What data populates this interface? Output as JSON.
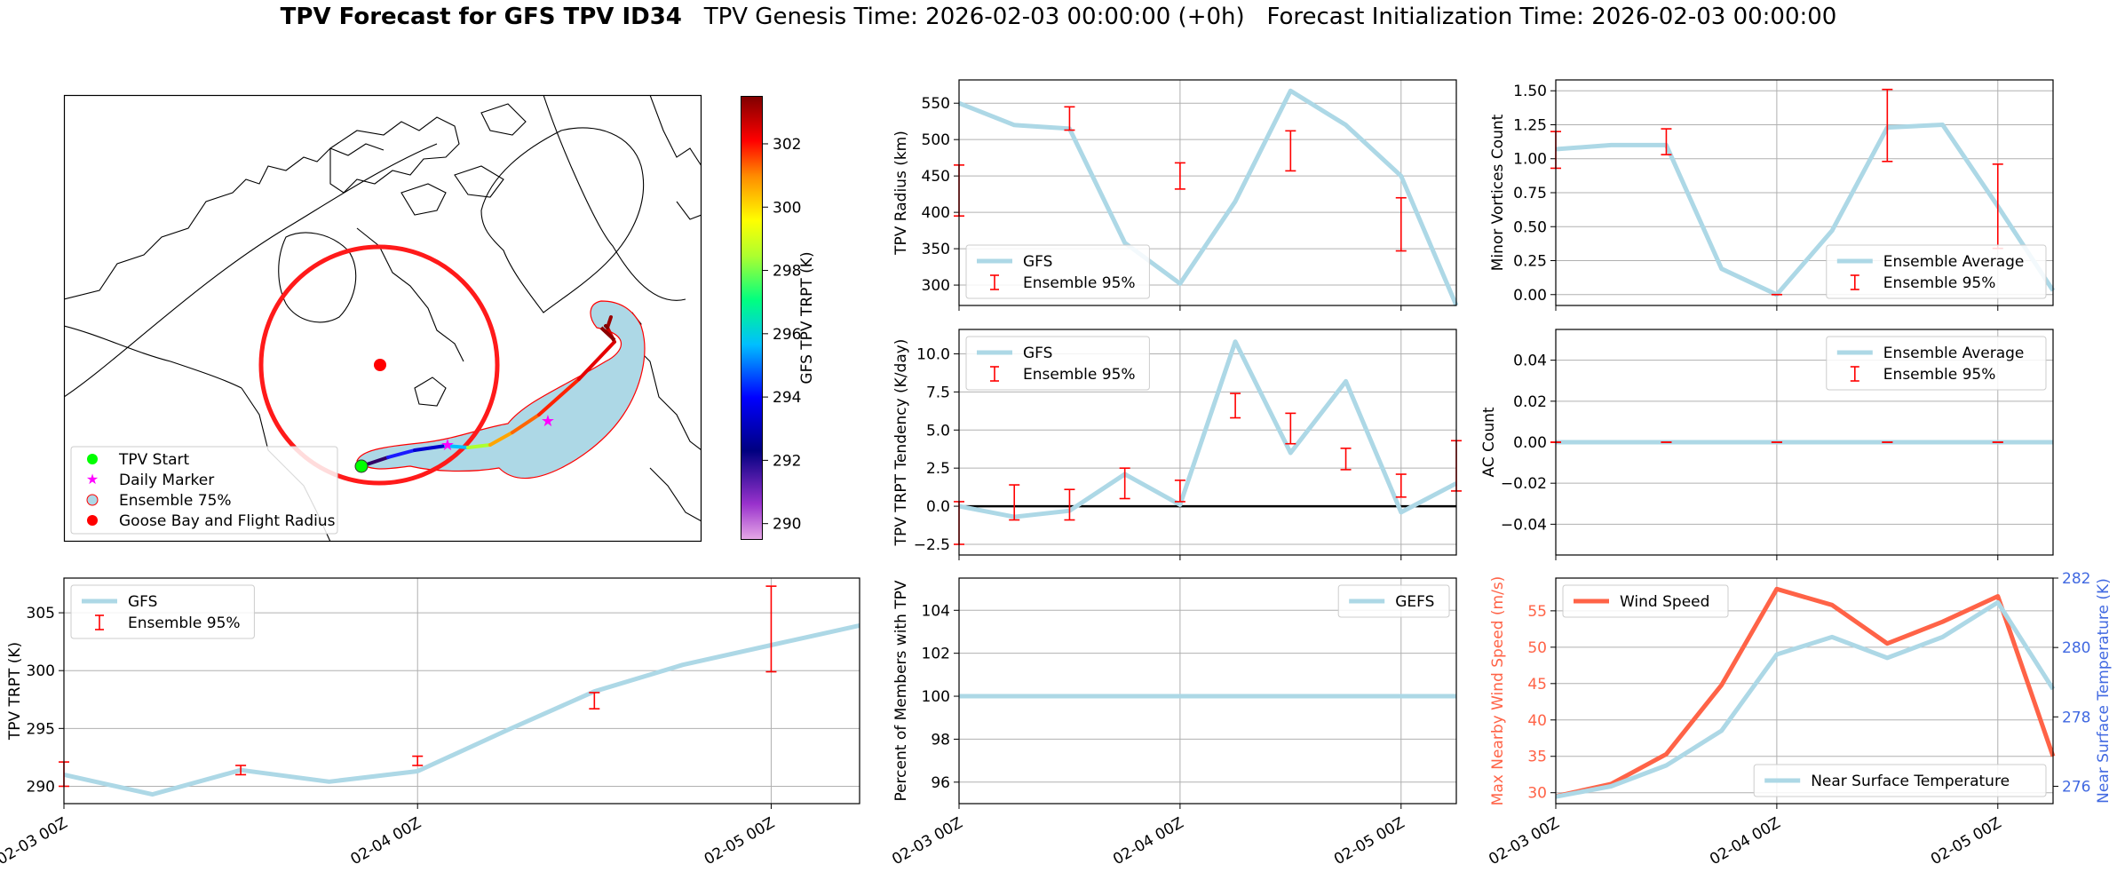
{
  "title": {
    "bold": "TPV Forecast for GFS TPV ID34",
    "genesis": "TPV Genesis Time: 2026-02-03 00:00:00 (+0h)",
    "init": "Forecast Initialization Time: 2026-02-03 00:00:00"
  },
  "colors": {
    "gfs_line": "#add8e6",
    "errbar": "#ff0000",
    "wind": "#ff6347",
    "temp_axis": "#4169e1",
    "zero_line": "#000000",
    "grid": "#b0b0b0",
    "tpv_start": "#00ff00",
    "daily_marker": "#ff00ff",
    "goose_bay": "#ff0000"
  },
  "map": {
    "colorbar_label": "GFS TPV TRPT (K)",
    "colorbar_ticks": [
      "290",
      "292",
      "294",
      "296",
      "298",
      "300",
      "302"
    ],
    "colorbar_range": [
      289.5,
      303.5
    ],
    "legend": [
      "TPV Start",
      "Daily Marker",
      "Ensemble 75%",
      "Goose Bay and Flight Radius"
    ]
  },
  "chart_data": [
    {
      "id": "radius",
      "type": "line",
      "ylabel": "TPV Radius (km)",
      "xlim": [
        0,
        54
      ],
      "ylim": [
        272,
        582
      ],
      "yticks": [
        300,
        350,
        400,
        450,
        500,
        550
      ],
      "ytick_labels": [
        "300",
        "350",
        "400",
        "450",
        "500",
        "550"
      ],
      "xticks": [
        0,
        24,
        48
      ],
      "series": [
        {
          "name": "GFS",
          "x": [
            0,
            6,
            12,
            18,
            24,
            30,
            36,
            42,
            48,
            54
          ],
          "y": [
            550,
            520,
            515,
            358,
            302,
            415,
            567,
            520,
            450,
            272
          ]
        }
      ],
      "errorbars": {
        "name": "Ensemble 95%",
        "x": [
          0,
          12,
          24,
          36,
          48
        ],
        "lo": [
          395,
          513,
          432,
          457,
          347
        ],
        "hi": [
          465,
          545,
          468,
          512,
          420
        ]
      },
      "legend": [
        "GFS",
        "Ensemble 95%"
      ],
      "legend_loc": "lower-left"
    },
    {
      "id": "minor",
      "type": "line",
      "ylabel": "Minor Vortices Count",
      "xlim": [
        0,
        54
      ],
      "ylim": [
        -0.08,
        1.58
      ],
      "yticks": [
        0,
        0.25,
        0.5,
        0.75,
        1.0,
        1.25,
        1.5
      ],
      "ytick_labels": [
        "0.00",
        "0.25",
        "0.50",
        "0.75",
        "1.00",
        "1.25",
        "1.50"
      ],
      "xticks": [
        0,
        24,
        48
      ],
      "series": [
        {
          "name": "Ensemble Average",
          "x": [
            0,
            6,
            12,
            18,
            24,
            30,
            36,
            42,
            48,
            54
          ],
          "y": [
            1.07,
            1.1,
            1.1,
            0.19,
            0.0,
            0.47,
            1.23,
            1.25,
            0.65,
            0.03
          ]
        }
      ],
      "errorbars": {
        "name": "Ensemble 95%",
        "x": [
          0,
          12,
          24,
          36,
          48
        ],
        "lo": [
          0.93,
          1.03,
          0.0,
          0.98,
          0.34
        ],
        "hi": [
          1.2,
          1.22,
          0.0,
          1.51,
          0.96
        ]
      },
      "legend": [
        "Ensemble Average",
        "Ensemble 95%"
      ],
      "legend_loc": "lower-right"
    },
    {
      "id": "tendency",
      "type": "line",
      "ylabel": "TPV TRPT Tendency (K/day)",
      "xlim": [
        0,
        54
      ],
      "ylim": [
        -3.2,
        11.6
      ],
      "yticks": [
        -2.5,
        0,
        2.5,
        5,
        7.5,
        10
      ],
      "ytick_labels": [
        "−2.5",
        "0.0",
        "2.5",
        "5.0",
        "7.5",
        "10.0"
      ],
      "xticks": [
        0,
        24,
        48
      ],
      "zero_line": true,
      "series": [
        {
          "name": "GFS",
          "x": [
            0,
            6,
            12,
            18,
            24,
            30,
            36,
            42,
            48,
            54
          ],
          "y": [
            0.0,
            -0.7,
            -0.3,
            2.1,
            0.1,
            10.8,
            3.5,
            8.2,
            -0.4,
            1.5
          ]
        }
      ],
      "errorbars": {
        "name": "Ensemble 95%",
        "x": [
          0,
          6,
          12,
          18,
          24,
          30,
          36,
          42,
          48,
          54
        ],
        "lo": [
          -2.5,
          -0.9,
          -0.9,
          0.5,
          0.3,
          5.8,
          4.1,
          2.4,
          0.6,
          1.0
        ],
        "hi": [
          0.3,
          1.4,
          1.1,
          2.5,
          1.7,
          7.4,
          6.1,
          3.8,
          2.1,
          4.3
        ]
      },
      "legend": [
        "GFS",
        "Ensemble 95%"
      ],
      "legend_loc": "upper-left"
    },
    {
      "id": "ac",
      "type": "line",
      "ylabel": "AC Count",
      "xlim": [
        0,
        54
      ],
      "ylim": [
        -0.055,
        0.055
      ],
      "yticks": [
        -0.04,
        -0.02,
        0,
        0.02,
        0.04
      ],
      "ytick_labels": [
        "−0.04",
        "−0.02",
        "0.00",
        "0.02",
        "0.04"
      ],
      "xticks": [
        0,
        24,
        48
      ],
      "series": [
        {
          "name": "Ensemble Average",
          "x": [
            0,
            54
          ],
          "y": [
            0,
            0
          ]
        }
      ],
      "errorbars": {
        "name": "Ensemble 95%",
        "x": [
          0,
          12,
          24,
          36,
          48
        ],
        "lo": [
          0,
          0,
          0,
          0,
          0
        ],
        "hi": [
          0,
          0,
          0,
          0,
          0
        ]
      },
      "legend": [
        "Ensemble Average",
        "Ensemble 95%"
      ],
      "legend_loc": "upper-right"
    },
    {
      "id": "trpt",
      "type": "line",
      "ylabel": "TPV TRPT (K)",
      "xlim": [
        0,
        54
      ],
      "ylim": [
        288.5,
        308
      ],
      "yticks": [
        290,
        295,
        300,
        305
      ],
      "ytick_labels": [
        "290",
        "295",
        "300",
        "305"
      ],
      "xticks": [
        0,
        24,
        48
      ],
      "xtick_labels": [
        "02-03 00Z",
        "02-04 00Z",
        "02-05 00Z"
      ],
      "series": [
        {
          "name": "GFS",
          "x": [
            0,
            6,
            12,
            18,
            24,
            30,
            36,
            42,
            48,
            54
          ],
          "y": [
            291.0,
            289.3,
            291.4,
            290.4,
            291.3,
            294.8,
            298.2,
            300.5,
            302.2,
            303.9
          ]
        }
      ],
      "errorbars": {
        "name": "Ensemble 95%",
        "x": [
          0,
          12,
          24,
          36,
          48
        ],
        "lo": [
          290.0,
          291.0,
          291.8,
          296.7,
          299.9
        ],
        "hi": [
          292.1,
          291.8,
          292.6,
          298.1,
          307.3
        ]
      },
      "legend": [
        "GFS",
        "Ensemble 95%"
      ],
      "legend_loc": "upper-left"
    },
    {
      "id": "percent",
      "type": "line",
      "ylabel": "Percent of Members with TPV",
      "xlim": [
        0,
        54
      ],
      "ylim": [
        95,
        105.5
      ],
      "yticks": [
        96,
        98,
        100,
        102,
        104
      ],
      "ytick_labels": [
        "96",
        "98",
        "100",
        "102",
        "104"
      ],
      "xticks": [
        0,
        24,
        48
      ],
      "xtick_labels": [
        "02-03 00Z",
        "02-04 00Z",
        "02-05 00Z"
      ],
      "series": [
        {
          "name": "GEFS",
          "x": [
            0,
            54
          ],
          "y": [
            100,
            100
          ]
        }
      ],
      "legend": [
        "GEFS"
      ],
      "legend_loc": "upper-right"
    },
    {
      "id": "wind",
      "type": "line",
      "ylabel": "Max Nearby Wind Speed (m/s)",
      "ylabel_right": "Near Surface Temperature (K)",
      "xlim": [
        0,
        54
      ],
      "ylim": [
        28.5,
        59.5
      ],
      "ylim_right": [
        275.5,
        282
      ],
      "yticks": [
        30,
        35,
        40,
        45,
        50,
        55
      ],
      "ytick_labels": [
        "30",
        "35",
        "40",
        "45",
        "50",
        "55"
      ],
      "yticks_right": [
        276,
        278,
        280,
        282
      ],
      "ytick_labels_right": [
        "276",
        "278",
        "280",
        "282"
      ],
      "xticks": [
        0,
        24,
        48
      ],
      "xtick_labels": [
        "02-03 00Z",
        "02-04 00Z",
        "02-05 00Z"
      ],
      "series": [
        {
          "name": "Wind Speed",
          "axis": "left",
          "x": [
            0,
            6,
            12,
            18,
            24,
            30,
            36,
            42,
            48,
            54
          ],
          "y": [
            29.5,
            31.2,
            35.3,
            44.8,
            58.0,
            55.8,
            50.5,
            53.5,
            57.0,
            35.0
          ]
        },
        {
          "name": "Near Surface Temperature",
          "axis": "right",
          "x": [
            0,
            6,
            12,
            18,
            24,
            30,
            36,
            42,
            48,
            54
          ],
          "y": [
            275.7,
            276.0,
            276.6,
            277.6,
            279.8,
            280.3,
            279.7,
            280.3,
            281.3,
            278.8
          ]
        }
      ],
      "legend_left": [
        "Wind Speed"
      ],
      "legend_left_loc": "upper-left",
      "legend_right": [
        "Near Surface Temperature"
      ],
      "legend_right_loc": "lower-right"
    }
  ]
}
